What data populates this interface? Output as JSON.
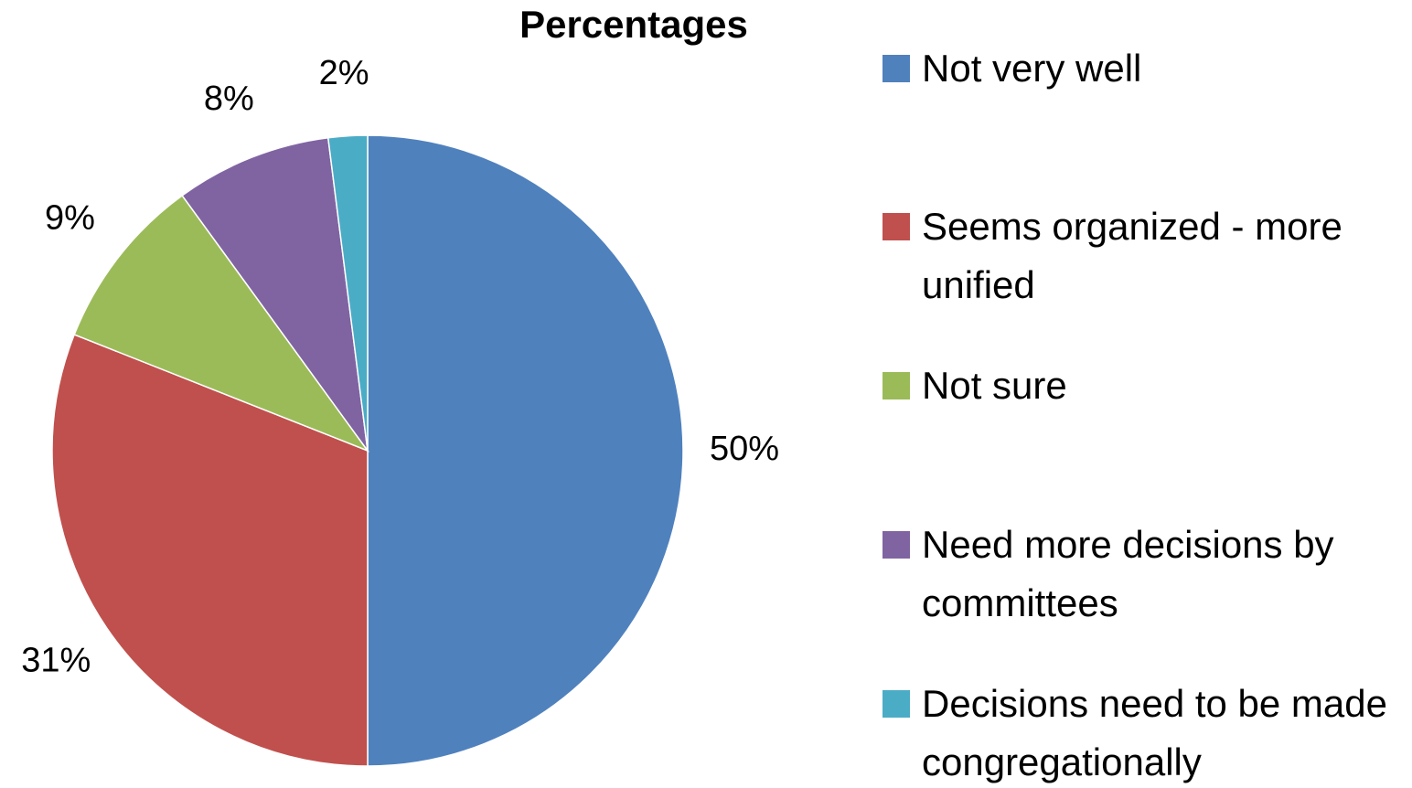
{
  "chart_data": {
    "type": "pie",
    "title": "Percentages",
    "categories": [
      "Not very well",
      "Seems organized - more unified",
      "Not sure",
      "Need more decisions by committees",
      "Decisions need to be made congregationally"
    ],
    "values": [
      50,
      31,
      9,
      8,
      2
    ],
    "value_labels": [
      "50%",
      "31%",
      "9%",
      "8%",
      "2%"
    ],
    "colors": [
      "#4f81bd",
      "#c0504d",
      "#9bbb59",
      "#8064a2",
      "#4bacc6"
    ],
    "legend": "right"
  }
}
